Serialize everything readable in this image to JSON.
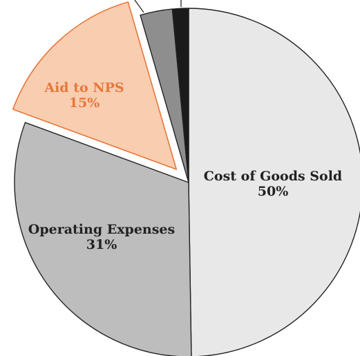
{
  "chart_data": {
    "type": "pie",
    "title": "",
    "slices": [
      {
        "label": "Cost of Goods Sold",
        "percent_label": "50%",
        "value": 50,
        "color": "#e8e8e8",
        "label_color": "#222222",
        "exploded": false
      },
      {
        "label": "Operating Expenses",
        "percent_label": "31%",
        "value": 31,
        "color": "#bdbdbd",
        "label_color": "#222222",
        "exploded": false
      },
      {
        "label": "Aid to NPS",
        "percent_label": "15%",
        "value": 15,
        "color": "#f8cdb0",
        "label_color": "#e8773a",
        "exploded": true
      },
      {
        "label": "",
        "percent_label": "",
        "value": 3,
        "color": "#8e8e8e",
        "label_color": "#222222",
        "exploded": false
      },
      {
        "label": "",
        "percent_label": "",
        "value": 1.5,
        "color": "#1a1a1a",
        "label_color": "#222222",
        "exploded": false
      }
    ],
    "start_angle_deg": 0,
    "direction": "clockwise",
    "legend": "none"
  }
}
